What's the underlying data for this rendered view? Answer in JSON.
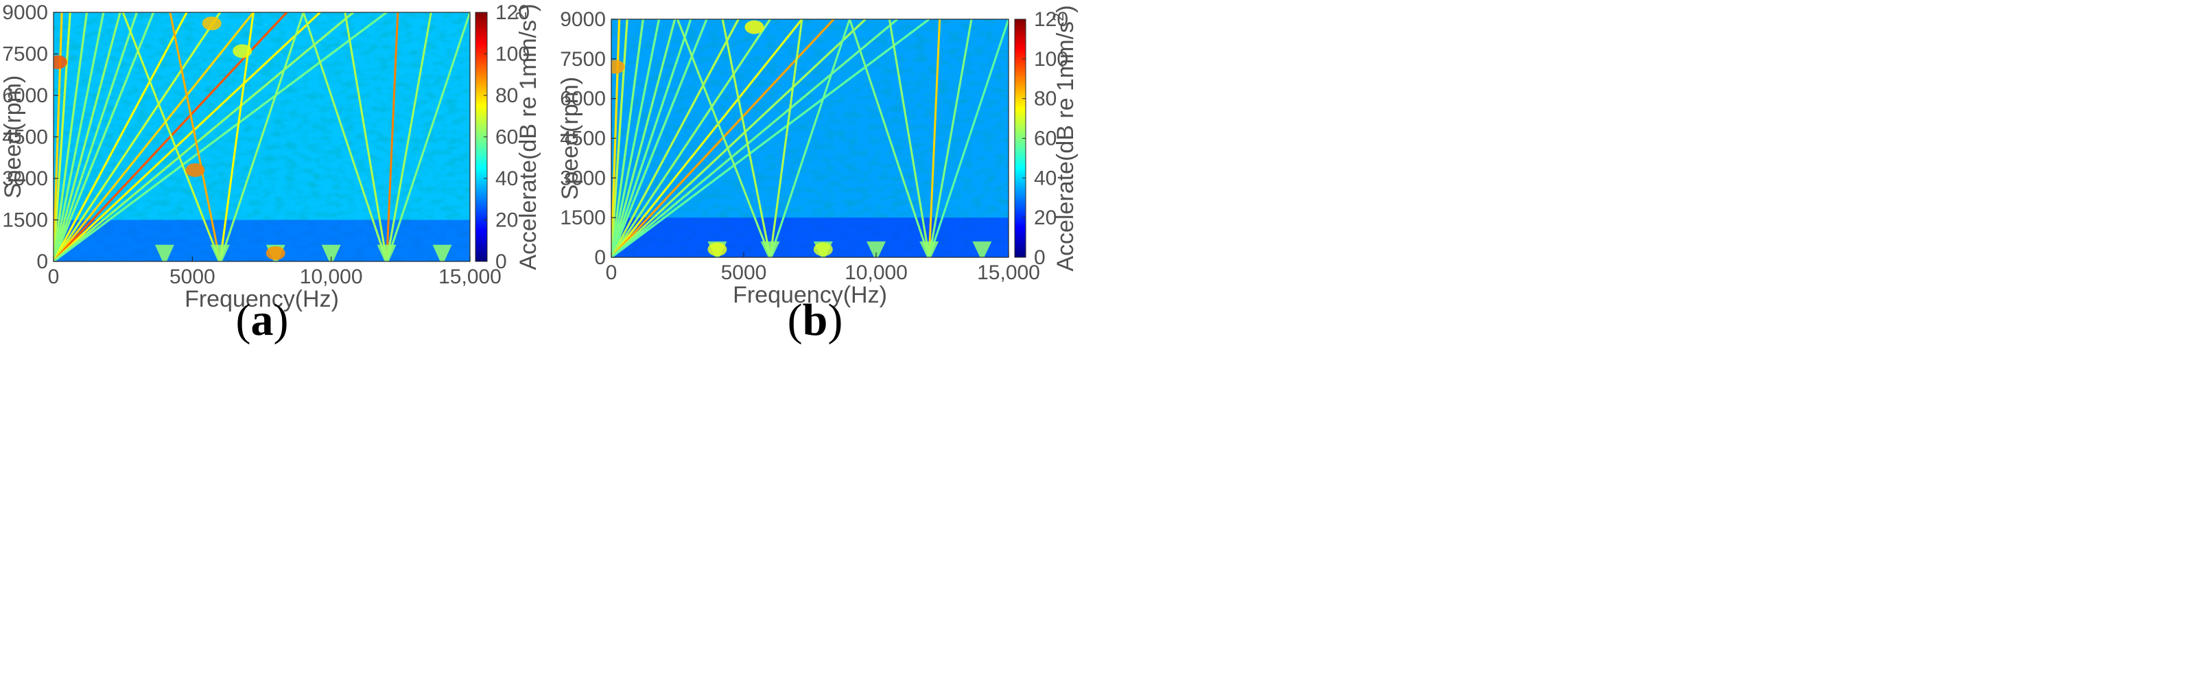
{
  "chart_data": [
    {
      "panel": "a",
      "caption_open": "(",
      "caption_letter": "a",
      "caption_close": ")",
      "type": "heatmap",
      "title": "",
      "xlabel": "Frequency(Hz)",
      "ylabel": "Speed(rpm)",
      "xlim": [
        0,
        15000
      ],
      "ylim": [
        0,
        9000
      ],
      "xticks": [
        0,
        5000,
        10000,
        15000
      ],
      "xtick_labels": [
        "0",
        "5000",
        "10,000",
        "15,000"
      ],
      "yticks": [
        0,
        1500,
        3000,
        4500,
        6000,
        7500,
        9000
      ],
      "ytick_labels": [
        "0",
        "1500",
        "3000",
        "4500",
        "6000",
        "7500",
        "9000"
      ],
      "colorbar": {
        "label": "Accelerate(dB re 1mm/s",
        "label_sup": "2",
        "label_close": ")",
        "range": [
          0,
          120
        ],
        "ticks": [
          0,
          20,
          40,
          60,
          80,
          100,
          120
        ],
        "tick_labels": [
          "0",
          "20",
          "40",
          "60",
          "80",
          "100",
          "120"
        ]
      },
      "background_db": 38,
      "carrier_frequencies_hz": [
        4000,
        6000,
        8000,
        10000,
        12000,
        14000
      ],
      "order_lines": [
        {
          "f_at_9000rpm": 300,
          "db": 80
        },
        {
          "f_at_9000rpm": 600,
          "db": 68
        },
        {
          "f_at_9000rpm": 1200,
          "db": 62
        },
        {
          "f_at_9000rpm": 1800,
          "db": 60
        },
        {
          "f_at_9000rpm": 2400,
          "db": 62
        },
        {
          "f_at_9000rpm": 3000,
          "db": 60
        },
        {
          "f_at_9000rpm": 3600,
          "db": 60
        },
        {
          "f_at_9000rpm": 4800,
          "db": 74
        },
        {
          "f_at_9000rpm": 6000,
          "db": 68
        },
        {
          "f_at_9000rpm": 7200,
          "db": 80
        },
        {
          "f_at_9000rpm": 8400,
          "db": 95
        },
        {
          "f_at_9000rpm": 9600,
          "db": 76
        },
        {
          "f_at_9000rpm": 10800,
          "db": 62
        },
        {
          "f_at_9000rpm": 12000,
          "db": 58
        }
      ],
      "sideband_lines": [
        {
          "carrier_hz": 6000,
          "f_at_9000rpm": 2500,
          "db": 68
        },
        {
          "carrier_hz": 6000,
          "f_at_9000rpm": 4200,
          "db": 85
        },
        {
          "carrier_hz": 6000,
          "f_at_9000rpm": 7200,
          "db": 75
        },
        {
          "carrier_hz": 6000,
          "f_at_9000rpm": 9000,
          "db": 62
        },
        {
          "carrier_hz": 12000,
          "f_at_9000rpm": 9000,
          "db": 64
        },
        {
          "carrier_hz": 12000,
          "f_at_9000rpm": 10500,
          "db": 66
        },
        {
          "carrier_hz": 12000,
          "f_at_9000rpm": 12400,
          "db": 90
        },
        {
          "carrier_hz": 12000,
          "f_at_9000rpm": 13600,
          "db": 64
        },
        {
          "carrier_hz": 12000,
          "f_at_9000rpm": 15000,
          "db": 60
        }
      ],
      "hotspots": [
        {
          "f": 5700,
          "rpm": 8600,
          "db": 82
        },
        {
          "f": 6800,
          "rpm": 7600,
          "db": 72
        },
        {
          "f": 8000,
          "rpm": 300,
          "db": 88
        },
        {
          "f": 5100,
          "rpm": 3300,
          "db": 90
        },
        {
          "f": 150,
          "rpm": 7200,
          "db": 95
        }
      ]
    },
    {
      "panel": "b",
      "caption_open": "(",
      "caption_letter": "b",
      "caption_close": ")",
      "type": "heatmap",
      "title": "",
      "xlabel": "Frequency(Hz)",
      "ylabel": "Speed(rpm)",
      "xlim": [
        0,
        15000
      ],
      "ylim": [
        0,
        9000
      ],
      "xticks": [
        0,
        5000,
        10000,
        15000
      ],
      "xtick_labels": [
        "0",
        "5000",
        "10,000",
        "15,000"
      ],
      "yticks": [
        0,
        1500,
        3000,
        4500,
        6000,
        7500,
        9000
      ],
      "ytick_labels": [
        "0",
        "1500",
        "3000",
        "4500",
        "6000",
        "7500",
        "9000"
      ],
      "colorbar": {
        "label": "Accelerate(dB re 1mm/s",
        "label_sup": "2",
        "label_close": ")",
        "range": [
          0,
          120
        ],
        "ticks": [
          0,
          20,
          40,
          60,
          80,
          100,
          120
        ],
        "tick_labels": [
          "0",
          "20",
          "40",
          "60",
          "80",
          "100",
          "120"
        ]
      },
      "background_db": 34,
      "carrier_frequencies_hz": [
        4000,
        6000,
        8000,
        10000,
        12000,
        14000
      ],
      "order_lines": [
        {
          "f_at_9000rpm": 300,
          "db": 78
        },
        {
          "f_at_9000rpm": 600,
          "db": 66
        },
        {
          "f_at_9000rpm": 1200,
          "db": 60
        },
        {
          "f_at_9000rpm": 1800,
          "db": 58
        },
        {
          "f_at_9000rpm": 2400,
          "db": 60
        },
        {
          "f_at_9000rpm": 3000,
          "db": 58
        },
        {
          "f_at_9000rpm": 3600,
          "db": 58
        },
        {
          "f_at_9000rpm": 4800,
          "db": 66
        },
        {
          "f_at_9000rpm": 6000,
          "db": 62
        },
        {
          "f_at_9000rpm": 7200,
          "db": 72
        },
        {
          "f_at_9000rpm": 8400,
          "db": 86
        },
        {
          "f_at_9000rpm": 9600,
          "db": 64
        },
        {
          "f_at_9000rpm": 10800,
          "db": 58
        },
        {
          "f_at_9000rpm": 12000,
          "db": 56
        }
      ],
      "sideband_lines": [
        {
          "carrier_hz": 6000,
          "f_at_9000rpm": 2500,
          "db": 62
        },
        {
          "carrier_hz": 6000,
          "f_at_9000rpm": 4200,
          "db": 66
        },
        {
          "carrier_hz": 6000,
          "f_at_9000rpm": 7200,
          "db": 66
        },
        {
          "carrier_hz": 6000,
          "f_at_9000rpm": 9000,
          "db": 58
        },
        {
          "carrier_hz": 12000,
          "f_at_9000rpm": 9000,
          "db": 60
        },
        {
          "carrier_hz": 12000,
          "f_at_9000rpm": 10500,
          "db": 62
        },
        {
          "carrier_hz": 12000,
          "f_at_9000rpm": 12400,
          "db": 80
        },
        {
          "carrier_hz": 12000,
          "f_at_9000rpm": 13600,
          "db": 60
        },
        {
          "carrier_hz": 12000,
          "f_at_9000rpm": 15000,
          "db": 56
        }
      ],
      "hotspots": [
        {
          "f": 5400,
          "rpm": 8700,
          "db": 74
        },
        {
          "f": 4000,
          "rpm": 300,
          "db": 72
        },
        {
          "f": 8000,
          "rpm": 300,
          "db": 70
        },
        {
          "f": 150,
          "rpm": 7200,
          "db": 86
        }
      ]
    }
  ]
}
